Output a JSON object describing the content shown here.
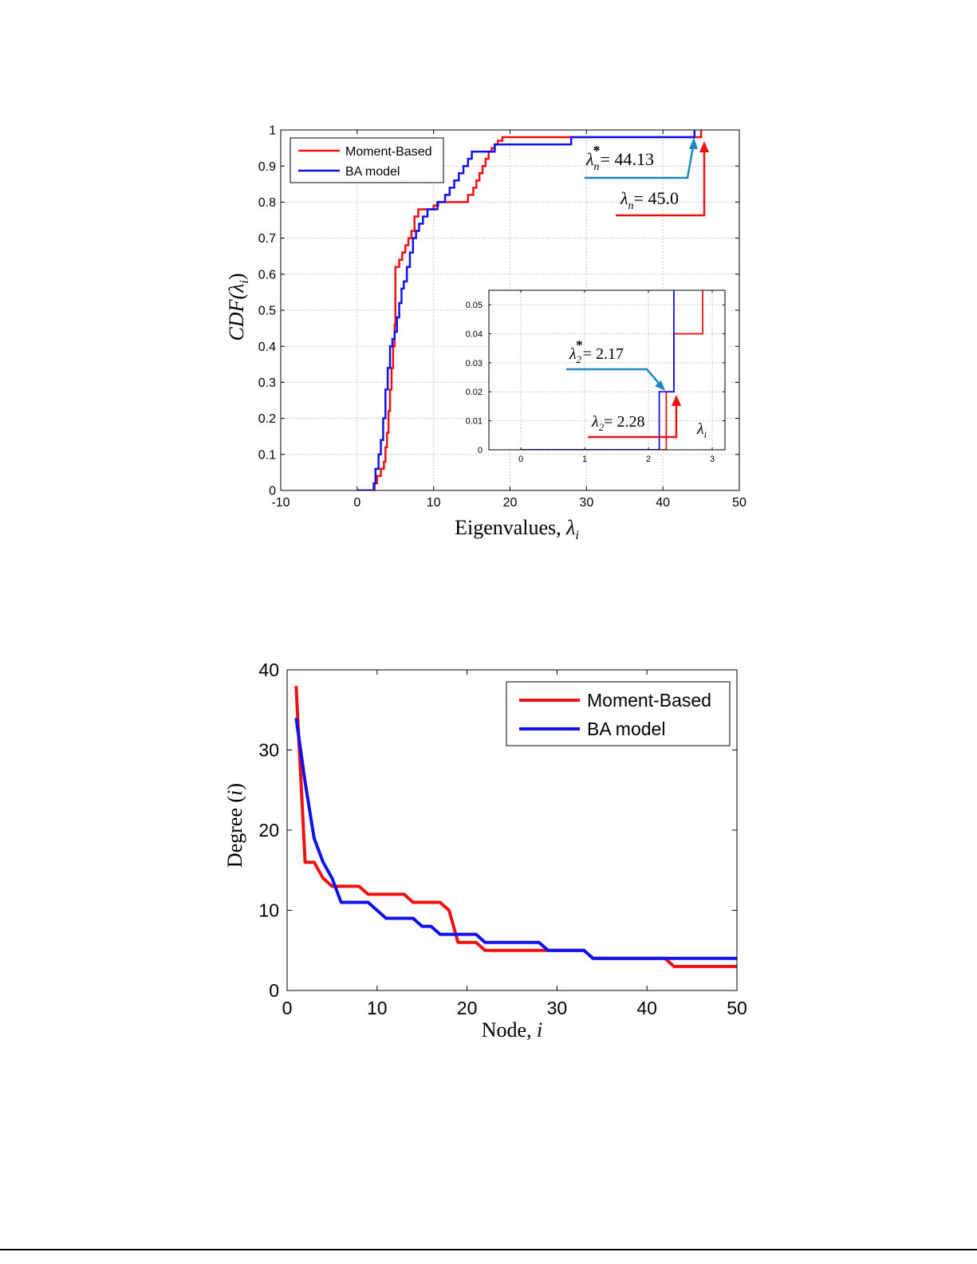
{
  "colors": {
    "moment": "#ee1111",
    "ba": "#1111ee",
    "annot_red": "#ee1111",
    "annot_blue": "#1a87c4",
    "grid": "#c8c8c8"
  },
  "chart_data": [
    {
      "id": "cdf",
      "type": "line",
      "step": true,
      "xlabel": "Eigenvalues, λi",
      "xlabel_main": "Eigenvalues,",
      "xlabel_var": "λ",
      "xlabel_sub": "i",
      "ylabel": "CDF(λi)",
      "ylabel_main": "CDF(",
      "ylabel_var": "λ",
      "ylabel_sub": "i",
      "ylabel_close": ")",
      "xlim": [
        -10,
        50
      ],
      "ylim": [
        0,
        1
      ],
      "xticks": [
        -10,
        0,
        10,
        20,
        30,
        40,
        50
      ],
      "yticks": [
        0,
        0.1,
        0.2,
        0.3,
        0.4,
        0.5,
        0.6,
        0.7,
        0.8,
        0.9,
        1
      ],
      "grid": true,
      "legend": {
        "position": "top-left",
        "entries": [
          "Moment-Based",
          "BA model"
        ]
      },
      "series": [
        {
          "name": "Moment-Based",
          "x": [
            0,
            2.28,
            2.6,
            3.1,
            3.5,
            3.7,
            3.9,
            4.1,
            4.3,
            4.5,
            4.7,
            4.9,
            5.0,
            5.5,
            5.9,
            6.3,
            6.7,
            7.1,
            7.5,
            8.0,
            10.0,
            10.6,
            11.0,
            14.5,
            15.2,
            15.6,
            16.0,
            16.4,
            16.8,
            17.2,
            17.6,
            18.0,
            18.4,
            19.0,
            45.0
          ],
          "y": [
            0,
            0.02,
            0.04,
            0.06,
            0.08,
            0.12,
            0.16,
            0.22,
            0.28,
            0.34,
            0.4,
            0.46,
            0.62,
            0.64,
            0.66,
            0.68,
            0.7,
            0.72,
            0.76,
            0.78,
            0.79,
            0.8,
            0.8,
            0.82,
            0.84,
            0.86,
            0.88,
            0.9,
            0.92,
            0.94,
            0.95,
            0.96,
            0.97,
            0.98,
            1.0
          ]
        },
        {
          "name": "BA model",
          "x": [
            0,
            2.17,
            2.4,
            2.8,
            3.1,
            3.4,
            3.7,
            4.0,
            4.3,
            4.6,
            4.9,
            5.2,
            5.5,
            5.8,
            6.1,
            6.5,
            6.9,
            7.3,
            7.7,
            8.1,
            8.6,
            9.2,
            10.5,
            11.5,
            12.1,
            12.7,
            13.3,
            13.9,
            14.5,
            15.0,
            15.5,
            18.0,
            18.5,
            28.0,
            44.13
          ],
          "y": [
            0,
            0.02,
            0.06,
            0.1,
            0.14,
            0.2,
            0.28,
            0.34,
            0.4,
            0.42,
            0.44,
            0.48,
            0.52,
            0.56,
            0.58,
            0.62,
            0.66,
            0.7,
            0.72,
            0.74,
            0.76,
            0.78,
            0.8,
            0.82,
            0.84,
            0.86,
            0.88,
            0.9,
            0.92,
            0.94,
            0.94,
            0.96,
            0.96,
            0.98,
            1.0
          ]
        }
      ],
      "annotations": [
        {
          "id": "lambda_n_star",
          "var": "λ",
          "sub": "n",
          "sup": "*",
          "text": "= 44.13",
          "value": 44.13,
          "color": "annot_blue"
        },
        {
          "id": "lambda_n",
          "var": "λ",
          "sub": "n",
          "sup": "",
          "text": "= 45.0",
          "value": 45.0,
          "color": "annot_red"
        }
      ],
      "inset": {
        "xlim": [
          -0.5,
          3.2
        ],
        "ylim": [
          0,
          0.055
        ],
        "xticks": [
          0,
          1,
          2,
          3
        ],
        "yticks": [
          0,
          0.01,
          0.02,
          0.03,
          0.04,
          0.05
        ],
        "ytick_labels": [
          "0",
          "0.01",
          "0.02",
          "0.03",
          "0.04",
          "0.05"
        ],
        "xlabel_var": "λ",
        "xlabel_sub": "i",
        "grid": true,
        "series": [
          {
            "name": "Moment-Based",
            "x": [
              0,
              2.28,
              2.4,
              2.85
            ],
            "y": [
              0,
              0.02,
              0.04,
              0.06
            ]
          },
          {
            "name": "BA model",
            "x": [
              0,
              2.17,
              2.4
            ],
            "y": [
              0,
              0.02,
              0.06
            ]
          }
        ],
        "annotations": [
          {
            "id": "lambda_2_star",
            "var": "λ",
            "sub": "2",
            "sup": "*",
            "text": "= 2.17",
            "value": 2.17,
            "color": "annot_blue"
          },
          {
            "id": "lambda_2",
            "var": "λ",
            "sub": "2",
            "sup": "",
            "text": "= 2.28",
            "value": 2.28,
            "color": "annot_red"
          }
        ]
      }
    },
    {
      "id": "degree",
      "type": "line",
      "xlabel": "Node, i",
      "xlabel_main": "Node,",
      "xlabel_var": "i",
      "ylabel": "Degree (i)",
      "ylabel_main": "Degree (",
      "ylabel_var": "i",
      "ylabel_close": ")",
      "xlim": [
        0,
        50
      ],
      "ylim": [
        0,
        40
      ],
      "xticks": [
        0,
        10,
        20,
        30,
        40,
        50
      ],
      "yticks": [
        0,
        10,
        20,
        30,
        40
      ],
      "grid": false,
      "legend": {
        "position": "top-right",
        "entries": [
          "Moment-Based",
          "BA model"
        ]
      },
      "series": [
        {
          "name": "Moment-Based",
          "x": [
            1,
            2,
            3,
            4,
            5,
            6,
            7,
            8,
            9,
            10,
            11,
            12,
            13,
            14,
            15,
            16,
            17,
            18,
            19,
            20,
            21,
            22,
            23,
            24,
            25,
            26,
            27,
            28,
            29,
            30,
            31,
            32,
            33,
            34,
            35,
            36,
            37,
            38,
            39,
            40,
            41,
            42,
            43,
            44,
            45,
            46,
            47,
            48,
            49,
            50
          ],
          "y": [
            38,
            16,
            16,
            14,
            13,
            13,
            13,
            13,
            12,
            12,
            12,
            12,
            12,
            11,
            11,
            11,
            11,
            10,
            6,
            6,
            6,
            5,
            5,
            5,
            5,
            5,
            5,
            5,
            5,
            5,
            5,
            5,
            5,
            4,
            4,
            4,
            4,
            4,
            4,
            4,
            4,
            4,
            3,
            3,
            3,
            3,
            3,
            3,
            3,
            3
          ]
        },
        {
          "name": "BA model",
          "x": [
            1,
            2,
            3,
            4,
            5,
            6,
            7,
            8,
            9,
            10,
            11,
            12,
            13,
            14,
            15,
            16,
            17,
            18,
            19,
            20,
            21,
            22,
            23,
            24,
            25,
            26,
            27,
            28,
            29,
            30,
            31,
            32,
            33,
            34,
            35,
            36,
            37,
            38,
            39,
            40,
            41,
            42,
            43,
            44,
            45,
            46,
            47,
            48,
            49,
            50
          ],
          "y": [
            34,
            26,
            19,
            16,
            14,
            11,
            11,
            11,
            11,
            10,
            9,
            9,
            9,
            9,
            8,
            8,
            7,
            7,
            7,
            7,
            7,
            6,
            6,
            6,
            6,
            6,
            6,
            6,
            5,
            5,
            5,
            5,
            5,
            4,
            4,
            4,
            4,
            4,
            4,
            4,
            4,
            4,
            4,
            4,
            4,
            4,
            4,
            4,
            4,
            4
          ]
        }
      ]
    }
  ]
}
